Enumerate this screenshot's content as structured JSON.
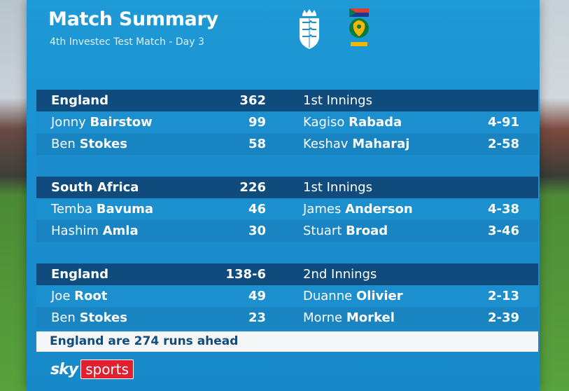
{
  "header": {
    "title": "Match Summary",
    "subtitle": "4th Investec Test Match - Day 3"
  },
  "innings": [
    {
      "team": "England",
      "score": "362",
      "innings_label": "1st Innings",
      "batting": [
        {
          "first": "Jonny",
          "last": "Bairstow",
          "runs": "99"
        },
        {
          "first": "Ben",
          "last": "Stokes",
          "runs": "58"
        }
      ],
      "bowling": [
        {
          "first": "Kagiso",
          "last": "Rabada",
          "figures": "4-91"
        },
        {
          "first": "Keshav",
          "last": "Maharaj",
          "figures": "2-58"
        }
      ]
    },
    {
      "team": "South Africa",
      "score": "226",
      "innings_label": "1st Innings",
      "batting": [
        {
          "first": "Temba",
          "last": "Bavuma",
          "runs": "46"
        },
        {
          "first": "Hashim",
          "last": "Amla",
          "runs": "30"
        }
      ],
      "bowling": [
        {
          "first": "James",
          "last": "Anderson",
          "figures": "4-38"
        },
        {
          "first": "Stuart",
          "last": "Broad",
          "figures": "3-46"
        }
      ]
    },
    {
      "team": "England",
      "score": "138-6",
      "innings_label": "2nd Innings",
      "batting": [
        {
          "first": "Joe",
          "last": "Root",
          "runs": "49"
        },
        {
          "first": "Ben",
          "last": "Stokes",
          "runs": "23"
        }
      ],
      "bowling": [
        {
          "first": "Duanne",
          "last": "Olivier",
          "figures": "2-13"
        },
        {
          "first": "Morne",
          "last": "Morkel",
          "figures": "2-39"
        }
      ]
    }
  ],
  "footer": {
    "status": "England are 274 runs ahead"
  },
  "logo": {
    "sky": "sky",
    "sports": "sports"
  },
  "crests": {
    "england": "england-crest-icon",
    "south_africa": "south-africa-crest-icon"
  },
  "colors": {
    "panel": "#1a8fd0",
    "header_row": "#0f4c7d",
    "footer_bg": "#f4f6f8",
    "sports_red": "#e0202e"
  }
}
